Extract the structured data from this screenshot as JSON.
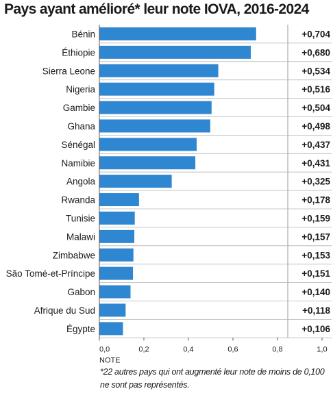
{
  "chart_data": {
    "type": "bar",
    "orientation": "horizontal",
    "title": "Pays ayant amélioré* leur note IOVA, 2016-2024",
    "xlabel": "NOTE",
    "xlim": [
      0,
      1.0
    ],
    "xticks": [
      "0,0",
      "0,2",
      "0,4",
      "0,6",
      "0,8",
      "1,0"
    ],
    "categories": [
      "Bénin",
      "Éthiopie",
      "Sierra Leone",
      "Nigeria",
      "Gambie",
      "Ghana",
      "Sénégal",
      "Namibie",
      "Angola",
      "Rwanda",
      "Tunisie",
      "Malawi",
      "Zimbabwe",
      "São Tomé-et-Príncipe",
      "Gabon",
      "Afrique du Sud",
      "Égypte"
    ],
    "values": [
      0.704,
      0.68,
      0.534,
      0.516,
      0.504,
      0.498,
      0.437,
      0.431,
      0.325,
      0.178,
      0.159,
      0.157,
      0.153,
      0.151,
      0.14,
      0.118,
      0.106
    ],
    "value_labels": [
      "+0,704",
      "+0,680",
      "+0,534",
      "+0,516",
      "+0,504",
      "+0,498",
      "+0,437",
      "+0,431",
      "+0,325",
      "+0,178",
      "+0,159",
      "+0,157",
      "+0,153",
      "+0,151",
      "+0,140",
      "+0,118",
      "+0,106"
    ],
    "bar_color": "#2f86d1",
    "footnote": "*22 autres pays qui ont augmenté leur note de moins de 0,100 ne sont pas représentés."
  }
}
